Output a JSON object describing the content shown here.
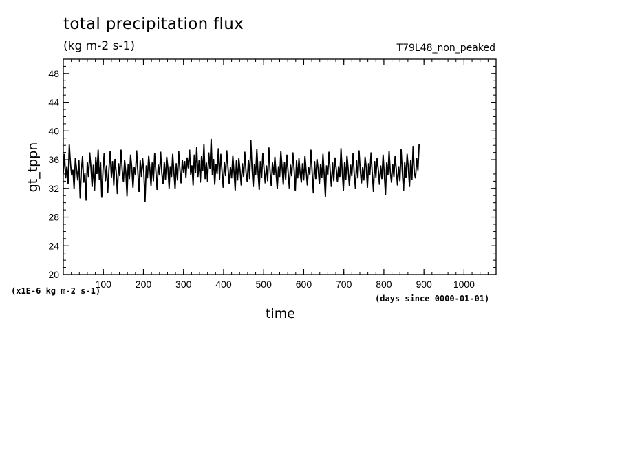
{
  "chart_data": {
    "type": "line",
    "title": "total precipitation flux",
    "units_label": "(kg m-2 s-1)",
    "run_label": "T79L48_non_peaked",
    "xlabel": "time",
    "x_unit_label": "(days since 0000-01-01)",
    "ylabel": "gt_tppn",
    "y_scale_label": "(x1E-6 kg m-2 s-1)",
    "xlim": [
      0,
      1080
    ],
    "ylim": [
      20,
      50
    ],
    "x_ticks": [
      100,
      200,
      300,
      400,
      500,
      600,
      700,
      800,
      900,
      1000
    ],
    "x_minor_step": 20,
    "y_ticks": [
      20,
      24,
      28,
      32,
      36,
      40,
      44,
      48
    ],
    "y_minor_step": 1,
    "series": [
      {
        "color": "#000000",
        "x_start": 0,
        "x_step": 3,
        "values": [
          34.2,
          36.8,
          33.4,
          35.1,
          32.6,
          38.1,
          35.4,
          33.8,
          34.6,
          31.9,
          36.2,
          34.8,
          33.1,
          35.9,
          30.6,
          34.4,
          36.5,
          32.8,
          34.1,
          30.3,
          35.7,
          33.6,
          37.0,
          34.9,
          32.2,
          35.3,
          31.6,
          36.4,
          34.0,
          37.4,
          33.2,
          35.6,
          30.7,
          34.5,
          36.9,
          33.0,
          35.2,
          31.4,
          34.7,
          37.2,
          33.5,
          35.8,
          32.4,
          36.1,
          34.3,
          31.2,
          35.5,
          33.7,
          37.4,
          34.6,
          32.9,
          36.0,
          34.2,
          30.9,
          35.4,
          33.3,
          36.7,
          34.8,
          32.1,
          35.0,
          33.9,
          37.3,
          34.4,
          31.5,
          35.9,
          33.6,
          36.2,
          34.1,
          30.1,
          35.2,
          33.4,
          36.6,
          34.7,
          32.3,
          35.6,
          33.0,
          36.9,
          34.5,
          31.8,
          35.3,
          33.8,
          37.1,
          34.0,
          32.6,
          35.7,
          33.2,
          36.4,
          34.9,
          32.0,
          35.1,
          33.6,
          36.8,
          34.3,
          31.9,
          35.5,
          33.1,
          37.2,
          34.6,
          32.7,
          36.0,
          34.2,
          35.8,
          33.5,
          36.3,
          34.8,
          37.4,
          33.9,
          35.2,
          32.4,
          36.7,
          34.1,
          37.8,
          33.6,
          35.9,
          32.8,
          36.5,
          34.4,
          38.2,
          33.3,
          35.6,
          32.9,
          37.0,
          34.7,
          38.9,
          33.8,
          36.1,
          32.5,
          35.4,
          34.0,
          37.6,
          33.2,
          36.8,
          34.5,
          32.1,
          35.7,
          33.7,
          37.3,
          34.9,
          32.6,
          35.0,
          33.4,
          36.6,
          34.3,
          31.7,
          35.9,
          33.1,
          36.2,
          34.6,
          32.4,
          35.5,
          33.6,
          37.1,
          34.2,
          32.9,
          36.0,
          33.3,
          38.7,
          34.8,
          32.2,
          35.4,
          33.9,
          37.5,
          34.1,
          31.8,
          35.8,
          33.5,
          36.9,
          34.7,
          32.7,
          35.2,
          33.0,
          37.7,
          34.4,
          32.3,
          35.6,
          33.8,
          36.4,
          34.0,
          31.9,
          35.1,
          33.6,
          37.2,
          34.9,
          32.5,
          35.7,
          33.2,
          36.7,
          34.3,
          32.0,
          35.3,
          33.7,
          37.0,
          34.6,
          31.6,
          35.9,
          33.4,
          36.2,
          34.1,
          32.8,
          35.5,
          33.1,
          36.5,
          34.5,
          32.4,
          35.0,
          33.9,
          37.4,
          34.2,
          31.3,
          35.8,
          33.3,
          36.1,
          34.7,
          32.6,
          35.4,
          33.5,
          36.8,
          34.0,
          30.8,
          35.2,
          33.8,
          37.1,
          34.4,
          32.2,
          35.6,
          33.0,
          36.3,
          34.8,
          32.9,
          35.1,
          33.6,
          37.6,
          34.3,
          31.7,
          35.7,
          33.2,
          36.6,
          34.6,
          32.3,
          35.3,
          33.7,
          36.9,
          34.1,
          31.9,
          35.9,
          33.4,
          37.3,
          34.5,
          32.7,
          35.0,
          33.1,
          36.4,
          34.9,
          32.1,
          35.5,
          33.9,
          37.0,
          34.2,
          31.5,
          35.8,
          33.5,
          36.2,
          34.7,
          32.5,
          35.2,
          33.3,
          36.7,
          34.0,
          31.1,
          35.6,
          33.8,
          37.2,
          34.4,
          32.8,
          35.4,
          33.6,
          36.5,
          34.6,
          32.4,
          35.1,
          33.0,
          37.5,
          34.3,
          31.6,
          35.7,
          33.5,
          36.8,
          34.8,
          32.2,
          35.9,
          33.2,
          37.9,
          34.1,
          33.4,
          36.2,
          34.5,
          38.2
        ]
      }
    ]
  }
}
